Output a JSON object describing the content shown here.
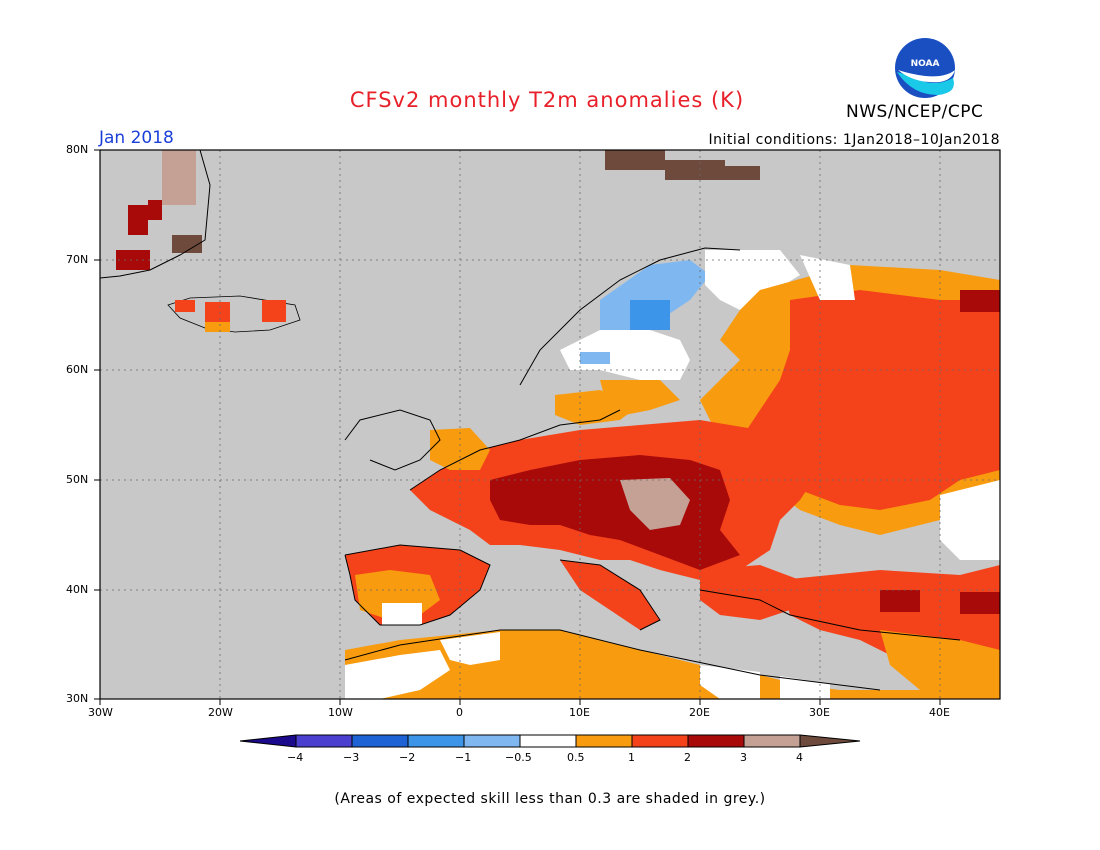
{
  "header": {
    "title": "CFSv2 monthly T2m anomalies (K)",
    "agency": "NWS/NCEP/CPC",
    "logo_text": "NOAA",
    "period": "Jan 2018",
    "initial_conditions": "Initial conditions: 1Jan2018–10Jan2018"
  },
  "map": {
    "region": "Europe",
    "lon_range": [
      -30,
      45
    ],
    "lat_range": [
      30,
      80
    ],
    "ocean_color": "#c8c8c8",
    "lon_ticks": [
      "30W",
      "20W",
      "10W",
      "0",
      "10E",
      "20E",
      "30E",
      "40E"
    ],
    "lat_ticks": [
      "80N",
      "70N",
      "60N",
      "50N",
      "40N",
      "30N"
    ]
  },
  "colorbar": {
    "labels": [
      "−4",
      "−3",
      "−2",
      "−1",
      "−0.5",
      "0.5",
      "1",
      "2",
      "3",
      "4"
    ],
    "colors": [
      "#1c0a8c",
      "#4a3fcf",
      "#1e63d6",
      "#3c95e8",
      "#7fb8f0",
      "#ffffff",
      "#f99b0e",
      "#f4431a",
      "#a80a0a",
      "#c4a095",
      "#6e4a3c"
    ]
  },
  "footnote": "(Areas of expected skill less than 0.3 are shaded in grey.)"
}
